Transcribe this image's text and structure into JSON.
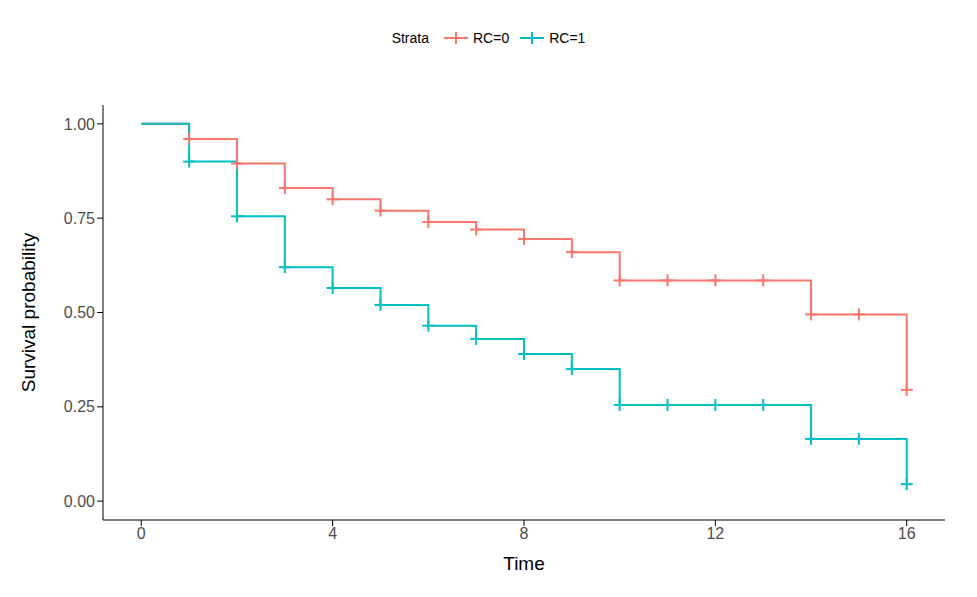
{
  "chart_data": {
    "type": "line",
    "x_label": "Time",
    "y_label": "Survival probability",
    "legend_title": "Strata",
    "legend": "top",
    "x": [
      0,
      1,
      2,
      3,
      4,
      5,
      6,
      7,
      8,
      9,
      10,
      11,
      12,
      13,
      14,
      15,
      16
    ],
    "series": [
      {
        "name": "RC=0",
        "color": "#F8766D",
        "line_style": "step",
        "marker": "plus",
        "censored": [
          1,
          2,
          3,
          4,
          5,
          6,
          7,
          8,
          9,
          10,
          11,
          12,
          13,
          14,
          15,
          16
        ],
        "values": [
          1.0,
          0.96,
          0.895,
          0.83,
          0.8,
          0.77,
          0.74,
          0.72,
          0.695,
          0.66,
          0.585,
          0.585,
          0.585,
          0.585,
          0.495,
          0.495,
          0.295
        ]
      },
      {
        "name": "RC=1",
        "color": "#00BFC4",
        "line_style": "step",
        "marker": "plus",
        "censored": [
          1,
          2,
          3,
          4,
          5,
          6,
          7,
          8,
          9,
          10,
          11,
          12,
          13,
          14,
          15,
          16
        ],
        "values": [
          1.0,
          0.9,
          0.755,
          0.62,
          0.565,
          0.52,
          0.465,
          0.43,
          0.39,
          0.35,
          0.255,
          0.255,
          0.255,
          0.255,
          0.165,
          0.165,
          0.045
        ]
      }
    ],
    "xlim": [
      -0.8,
      16.8
    ],
    "xticks": [
      0,
      4,
      8,
      12,
      16
    ],
    "ylim": [
      -0.05,
      1.05
    ],
    "yticks": [
      {
        "value": 0,
        "label": "0.00"
      },
      {
        "value": 0.25,
        "label": "0.25"
      },
      {
        "value": 0.5,
        "label": "0.50"
      },
      {
        "value": 0.75,
        "label": "0.75"
      },
      {
        "value": 1,
        "label": "1.00"
      }
    ],
    "grid": false
  }
}
